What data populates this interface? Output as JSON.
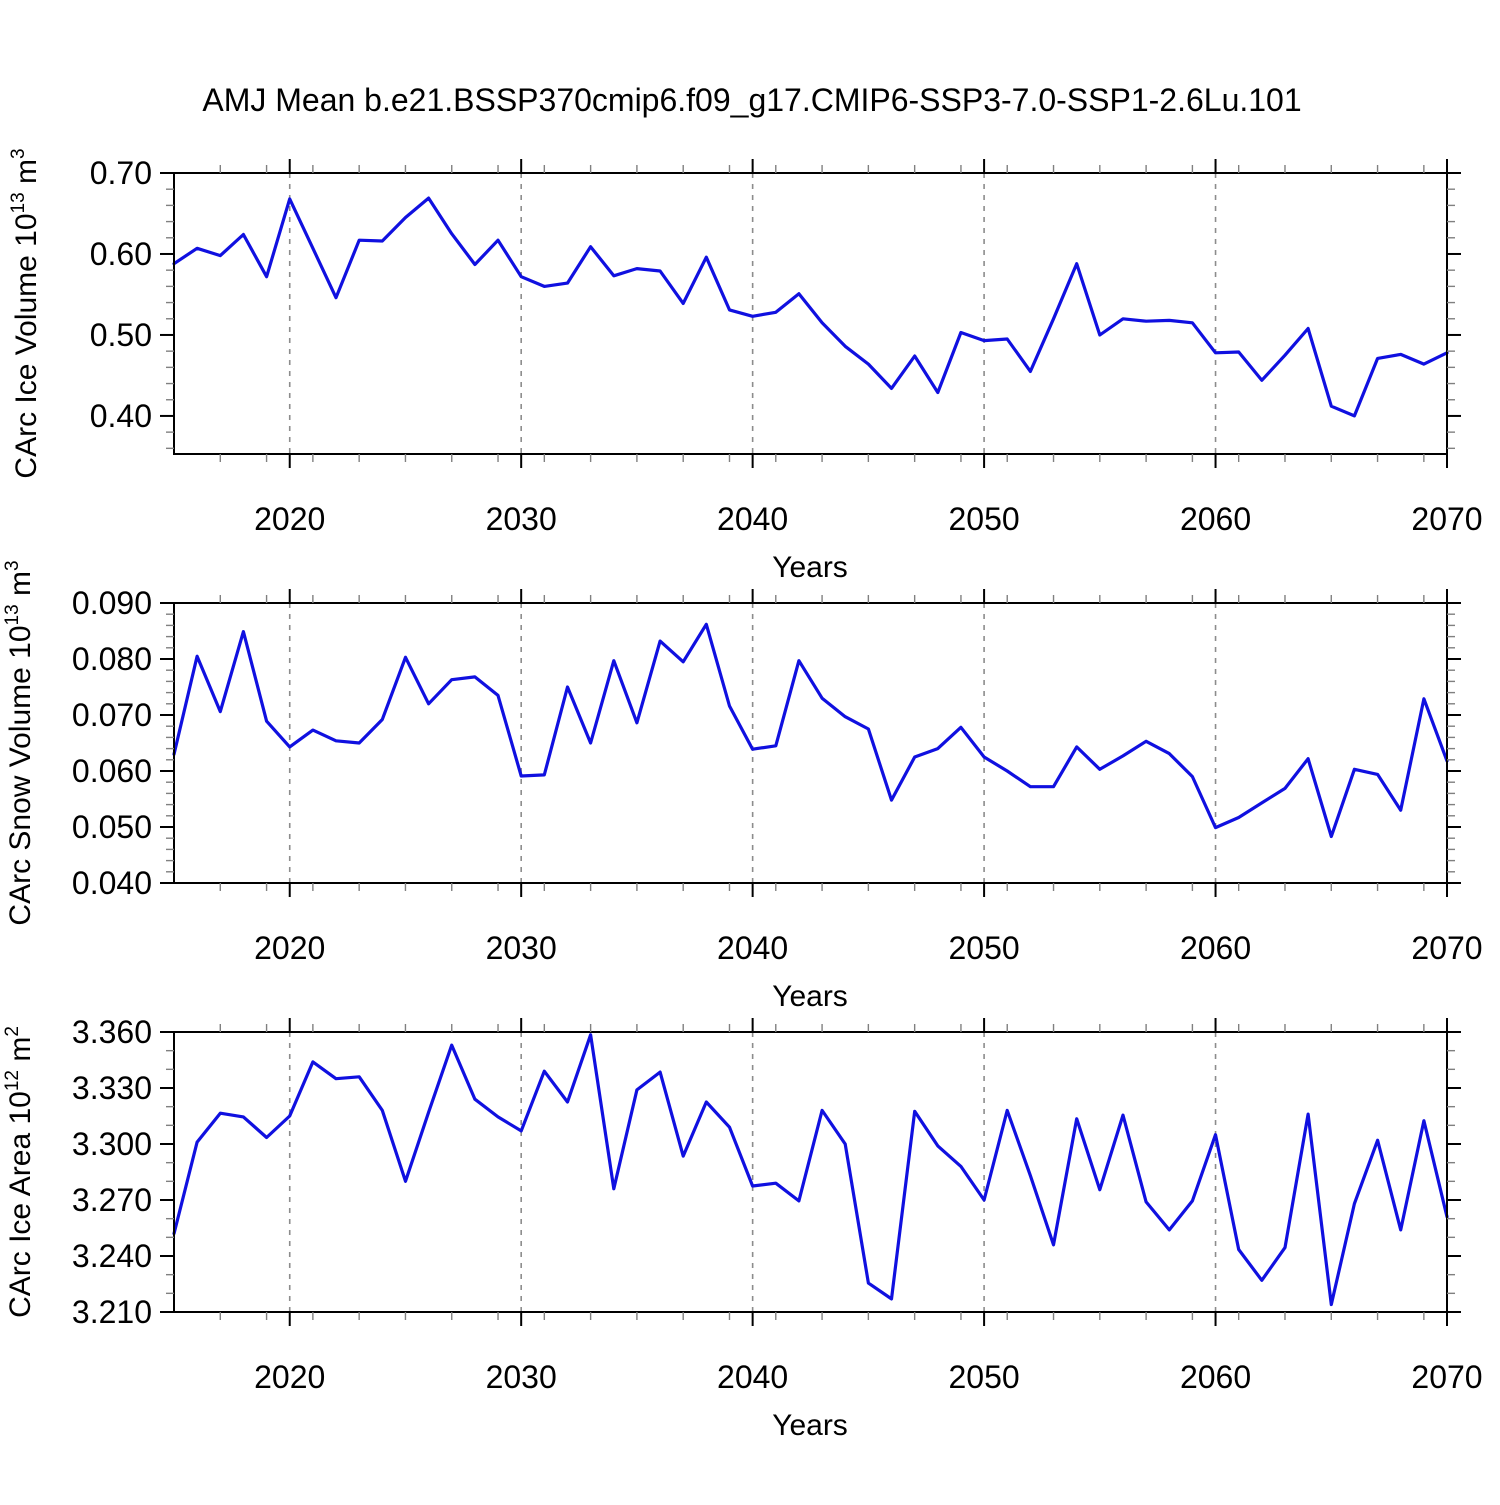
{
  "title": "AMJ Mean b.e21.BSSP370cmip6.f09_g17.CMIP6-SSP3-7.0-SSP1-2.6Lu.101",
  "line_color": "#1010e0",
  "grid_color": "#8c8c8c",
  "frame_color": "#000000",
  "minor_tick_color": "#808080",
  "years_range": [
    2015,
    2070
  ],
  "grid_years": [
    2020,
    2030,
    2040,
    2050,
    2060
  ],
  "xticks": [
    2020,
    2030,
    2040,
    2050,
    2060,
    2070
  ],
  "xtick_labels": [
    "2020",
    "2030",
    "2040",
    "2050",
    "2060",
    "2070"
  ],
  "xminor_step": 2,
  "chart_data": [
    {
      "type": "line",
      "name": "CArc Ice Volume",
      "xlabel": "Years",
      "ylabel": {
        "text": "CArc Ice Volume 10",
        "sup": "13",
        "mid": " m",
        "sup2": "3"
      },
      "ylim": [
        0.353,
        0.7
      ],
      "ytick_labels": [
        "0.40",
        "0.50",
        "0.60",
        "0.70"
      ],
      "yminor_step": 0.02,
      "x": [
        2015,
        2016,
        2017,
        2018,
        2019,
        2020,
        2021,
        2022,
        2023,
        2024,
        2025,
        2026,
        2027,
        2028,
        2029,
        2030,
        2031,
        2032,
        2033,
        2034,
        2035,
        2036,
        2037,
        2038,
        2039,
        2040,
        2041,
        2042,
        2043,
        2044,
        2045,
        2046,
        2047,
        2048,
        2049,
        2050,
        2051,
        2052,
        2053,
        2054,
        2055,
        2056,
        2057,
        2058,
        2059,
        2060,
        2061,
        2062,
        2063,
        2064,
        2065,
        2066,
        2067,
        2068,
        2069,
        2070
      ],
      "values": [
        0.588,
        0.607,
        0.598,
        0.624,
        0.572,
        0.668,
        0.607,
        0.546,
        0.617,
        0.616,
        0.645,
        0.669,
        0.625,
        0.587,
        0.617,
        0.572,
        0.56,
        0.564,
        0.609,
        0.573,
        0.582,
        0.579,
        0.539,
        0.596,
        0.531,
        0.523,
        0.528,
        0.551,
        0.515,
        0.486,
        0.464,
        0.434,
        0.474,
        0.429,
        0.503,
        0.493,
        0.495,
        0.455,
        0.52,
        0.588,
        0.5,
        0.52,
        0.517,
        0.518,
        0.515,
        0.478,
        0.479,
        0.444,
        0.475,
        0.508,
        0.412,
        0.4,
        0.471,
        0.476,
        0.464,
        0.478
      ]
    },
    {
      "type": "line",
      "name": "CArc Snow Volume",
      "xlabel": "Years",
      "ylabel": {
        "text": "CArc Snow Volume 10",
        "sup": "13",
        "mid": " m",
        "sup2": "3"
      },
      "ylim": [
        0.04,
        0.09
      ],
      "ytick_labels": [
        "0.040",
        "0.050",
        "0.060",
        "0.070",
        "0.080",
        "0.090"
      ],
      "yminor_step": 0.002,
      "x": [
        2015,
        2016,
        2017,
        2018,
        2019,
        2020,
        2021,
        2022,
        2023,
        2024,
        2025,
        2026,
        2027,
        2028,
        2029,
        2030,
        2031,
        2032,
        2033,
        2034,
        2035,
        2036,
        2037,
        2038,
        2039,
        2040,
        2041,
        2042,
        2043,
        2044,
        2045,
        2046,
        2047,
        2048,
        2049,
        2050,
        2051,
        2052,
        2053,
        2054,
        2055,
        2056,
        2057,
        2058,
        2059,
        2060,
        2061,
        2062,
        2063,
        2064,
        2065,
        2066,
        2067,
        2068,
        2069,
        2070
      ],
      "values": [
        0.063,
        0.0805,
        0.0706,
        0.0849,
        0.0689,
        0.0643,
        0.0673,
        0.0654,
        0.065,
        0.0692,
        0.0803,
        0.072,
        0.0763,
        0.0768,
        0.0735,
        0.0591,
        0.0593,
        0.075,
        0.065,
        0.0797,
        0.0686,
        0.0832,
        0.0795,
        0.0862,
        0.0716,
        0.0639,
        0.0645,
        0.0797,
        0.073,
        0.0697,
        0.0675,
        0.0548,
        0.0625,
        0.064,
        0.0678,
        0.0625,
        0.06,
        0.0572,
        0.0572,
        0.0643,
        0.0603,
        0.0627,
        0.0653,
        0.0631,
        0.059,
        0.0499,
        0.0517,
        0.0543,
        0.0569,
        0.0622,
        0.0483,
        0.0603,
        0.0594,
        0.053,
        0.0729,
        0.0618
      ]
    },
    {
      "type": "line",
      "name": "CArc Ice Area",
      "xlabel": "Years",
      "ylabel": {
        "text": "CArc Ice Area 10",
        "sup": "12",
        "mid": " m",
        "sup2": "2"
      },
      "ylim": [
        3.21,
        3.36
      ],
      "ytick_labels": [
        "3.210",
        "3.240",
        "3.270",
        "3.300",
        "3.330",
        "3.360"
      ],
      "yminor_step": 0.01,
      "x": [
        2015,
        2016,
        2017,
        2018,
        2019,
        2020,
        2021,
        2022,
        2023,
        2024,
        2025,
        2026,
        2027,
        2028,
        2029,
        2030,
        2031,
        2032,
        2033,
        2034,
        2035,
        2036,
        2037,
        2038,
        2039,
        2040,
        2041,
        2042,
        2043,
        2044,
        2045,
        2046,
        2047,
        2048,
        2049,
        2050,
        2051,
        2052,
        2053,
        2054,
        2055,
        2056,
        2057,
        2058,
        2059,
        2060,
        2061,
        2062,
        2063,
        2064,
        2065,
        2066,
        2067,
        2068,
        2069,
        2070
      ],
      "values": [
        3.252,
        3.301,
        3.3165,
        3.3145,
        3.3035,
        3.315,
        3.344,
        3.335,
        3.336,
        3.318,
        3.28,
        3.317,
        3.353,
        3.324,
        3.3145,
        3.307,
        3.339,
        3.3225,
        3.3585,
        3.276,
        3.329,
        3.3385,
        3.2935,
        3.3225,
        3.309,
        3.2775,
        3.279,
        3.2695,
        3.318,
        3.3,
        3.2255,
        3.217,
        3.3175,
        3.299,
        3.288,
        3.27,
        3.318,
        3.283,
        3.246,
        3.3135,
        3.2755,
        3.3155,
        3.269,
        3.254,
        3.2695,
        3.305,
        3.2435,
        3.227,
        3.2445,
        3.316,
        3.214,
        3.268,
        3.302,
        3.254,
        3.3125,
        3.261
      ]
    }
  ]
}
